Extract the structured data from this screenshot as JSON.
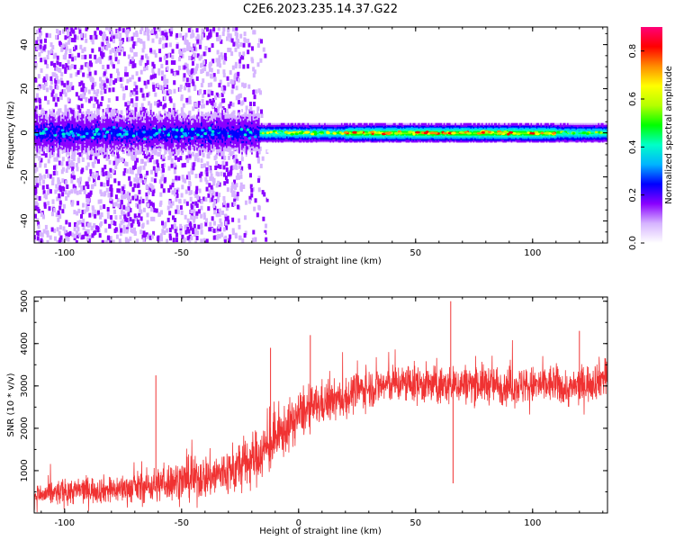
{
  "figure_title": "C2E6.2023.235.14.37.G22",
  "chart_data": [
    {
      "type": "heatmap",
      "title": "",
      "xlabel": "Height of straight line (km)",
      "ylabel": "Frequency (Hz)",
      "xlim": [
        -113,
        132
      ],
      "ylim": [
        -50,
        48
      ],
      "xticks": [
        -100,
        -50,
        0,
        50,
        100
      ],
      "yticks": [
        -40,
        -20,
        0,
        20,
        40
      ],
      "grid": false,
      "description_of_field": {
        "noisy_speckle_region_x": [
          -113,
          -17
        ],
        "central_band_center_hz": 0,
        "central_band_half_width_hz": 4,
        "band_peak_amplitude_region_x": [
          20,
          110
        ]
      },
      "colorbar": {
        "label": "Normalized spectral amplitude",
        "range": [
          0,
          0.9
        ],
        "ticks": [
          0.0,
          0.2,
          0.4,
          0.6,
          0.8
        ],
        "tick_labels": [
          "0.0",
          "0.2",
          "0.4",
          "0.6",
          "0.8"
        ],
        "colors": [
          "#ffffff",
          "#d6b4ff",
          "#8a00ff",
          "#0000ff",
          "#00b4ff",
          "#00ffc8",
          "#00ff00",
          "#b4ff00",
          "#ffff00",
          "#ff8c00",
          "#ff0000",
          "#ff0078"
        ]
      }
    },
    {
      "type": "line",
      "title": "",
      "xlabel": "Height of straight line (km)",
      "ylabel": "SNR (10 * v/v)",
      "xlim": [
        -113,
        132
      ],
      "ylim": [
        0,
        5100
      ],
      "xticks": [
        -100,
        -50,
        0,
        50,
        100
      ],
      "yticks": [
        1000,
        2000,
        3000,
        4000,
        5000
      ],
      "grid": false,
      "color": "#f03232",
      "series": [
        {
          "x": [
            -113,
            -100,
            -90,
            -80,
            -70,
            -62,
            -61,
            -55,
            -45,
            -35,
            -28,
            -20,
            -12,
            -5,
            0,
            10,
            20,
            25,
            30,
            40,
            50,
            60,
            64,
            65,
            66,
            70,
            80,
            90,
            100,
            110,
            115,
            120,
            125,
            132
          ],
          "mean": [
            400,
            500,
            550,
            550,
            600,
            650,
            650,
            750,
            800,
            900,
            1000,
            1250,
            1600,
            2000,
            2300,
            2600,
            2700,
            2900,
            2950,
            3050,
            3050,
            3000,
            3000,
            3000,
            3000,
            3050,
            3050,
            3000,
            3000,
            3050,
            2900,
            3000,
            3100,
            3250
          ],
          "spread": [
            300,
            350,
            350,
            350,
            400,
            450,
            450,
            500,
            550,
            600,
            650,
            700,
            700,
            650,
            600,
            550,
            500,
            500,
            500,
            500,
            500,
            500,
            500,
            500,
            500,
            500,
            500,
            500,
            500,
            500,
            450,
            500,
            500,
            500
          ],
          "spikes": [
            {
              "x": -61,
              "y": 3250
            },
            {
              "x": -12,
              "y": 3900
            },
            {
              "x": 5,
              "y": 4200
            },
            {
              "x": 65,
              "y": 5000
            },
            {
              "x": 66,
              "y": 700
            },
            {
              "x": 120,
              "y": 4300
            }
          ]
        }
      ]
    }
  ]
}
